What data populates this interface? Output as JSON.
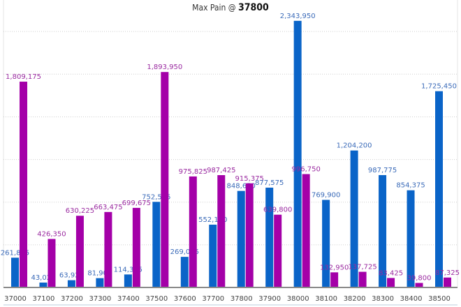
{
  "chart_data": {
    "type": "bar",
    "title_prefix": "Max Pain @",
    "title_value": "37800",
    "categories": [
      "37000",
      "37100",
      "37200",
      "37300",
      "37400",
      "37500",
      "37600",
      "37700",
      "37800",
      "37900",
      "38000",
      "38100",
      "38200",
      "38300",
      "38400",
      "38500"
    ],
    "series": [
      {
        "color": "#0a64c8",
        "label_color": "#3a6ab8",
        "values": [
          261875,
          43025,
          63925,
          81900,
          114325,
          752525,
          269075,
          552100,
          848650,
          877575,
          2343950,
          769900,
          1204200,
          987775,
          854375,
          1725450
        ],
        "labels": [
          "261,875",
          "43,025",
          "63,925",
          "81,900",
          "114,325",
          "752,525",
          "269,075",
          "552,100",
          "848,650",
          "877,575",
          "2,343,950",
          "769,900",
          "1,204,200",
          "987,775",
          "854,375",
          "1,725,450"
        ]
      },
      {
        "color": "#a400a8",
        "label_color": "#9a2aa0",
        "values": [
          1809175,
          426350,
          630225,
          663475,
          699675,
          1893950,
          975825,
          987425,
          915375,
          639800,
          996750,
          132950,
          137725,
          83425,
          39800,
          87325
        ],
        "labels": [
          "1,809,175",
          "426,350",
          "630,225",
          "663,475",
          "699,675",
          "1,893,950",
          "975,825",
          "987,425",
          "915,375",
          "639,800",
          "996,750",
          "132,950",
          "137,725",
          "83,425",
          "39,800",
          "87,325"
        ]
      }
    ],
    "ylim": [
      0,
      2527000
    ],
    "grid": true,
    "grid_step": 375000,
    "legend": "none"
  }
}
